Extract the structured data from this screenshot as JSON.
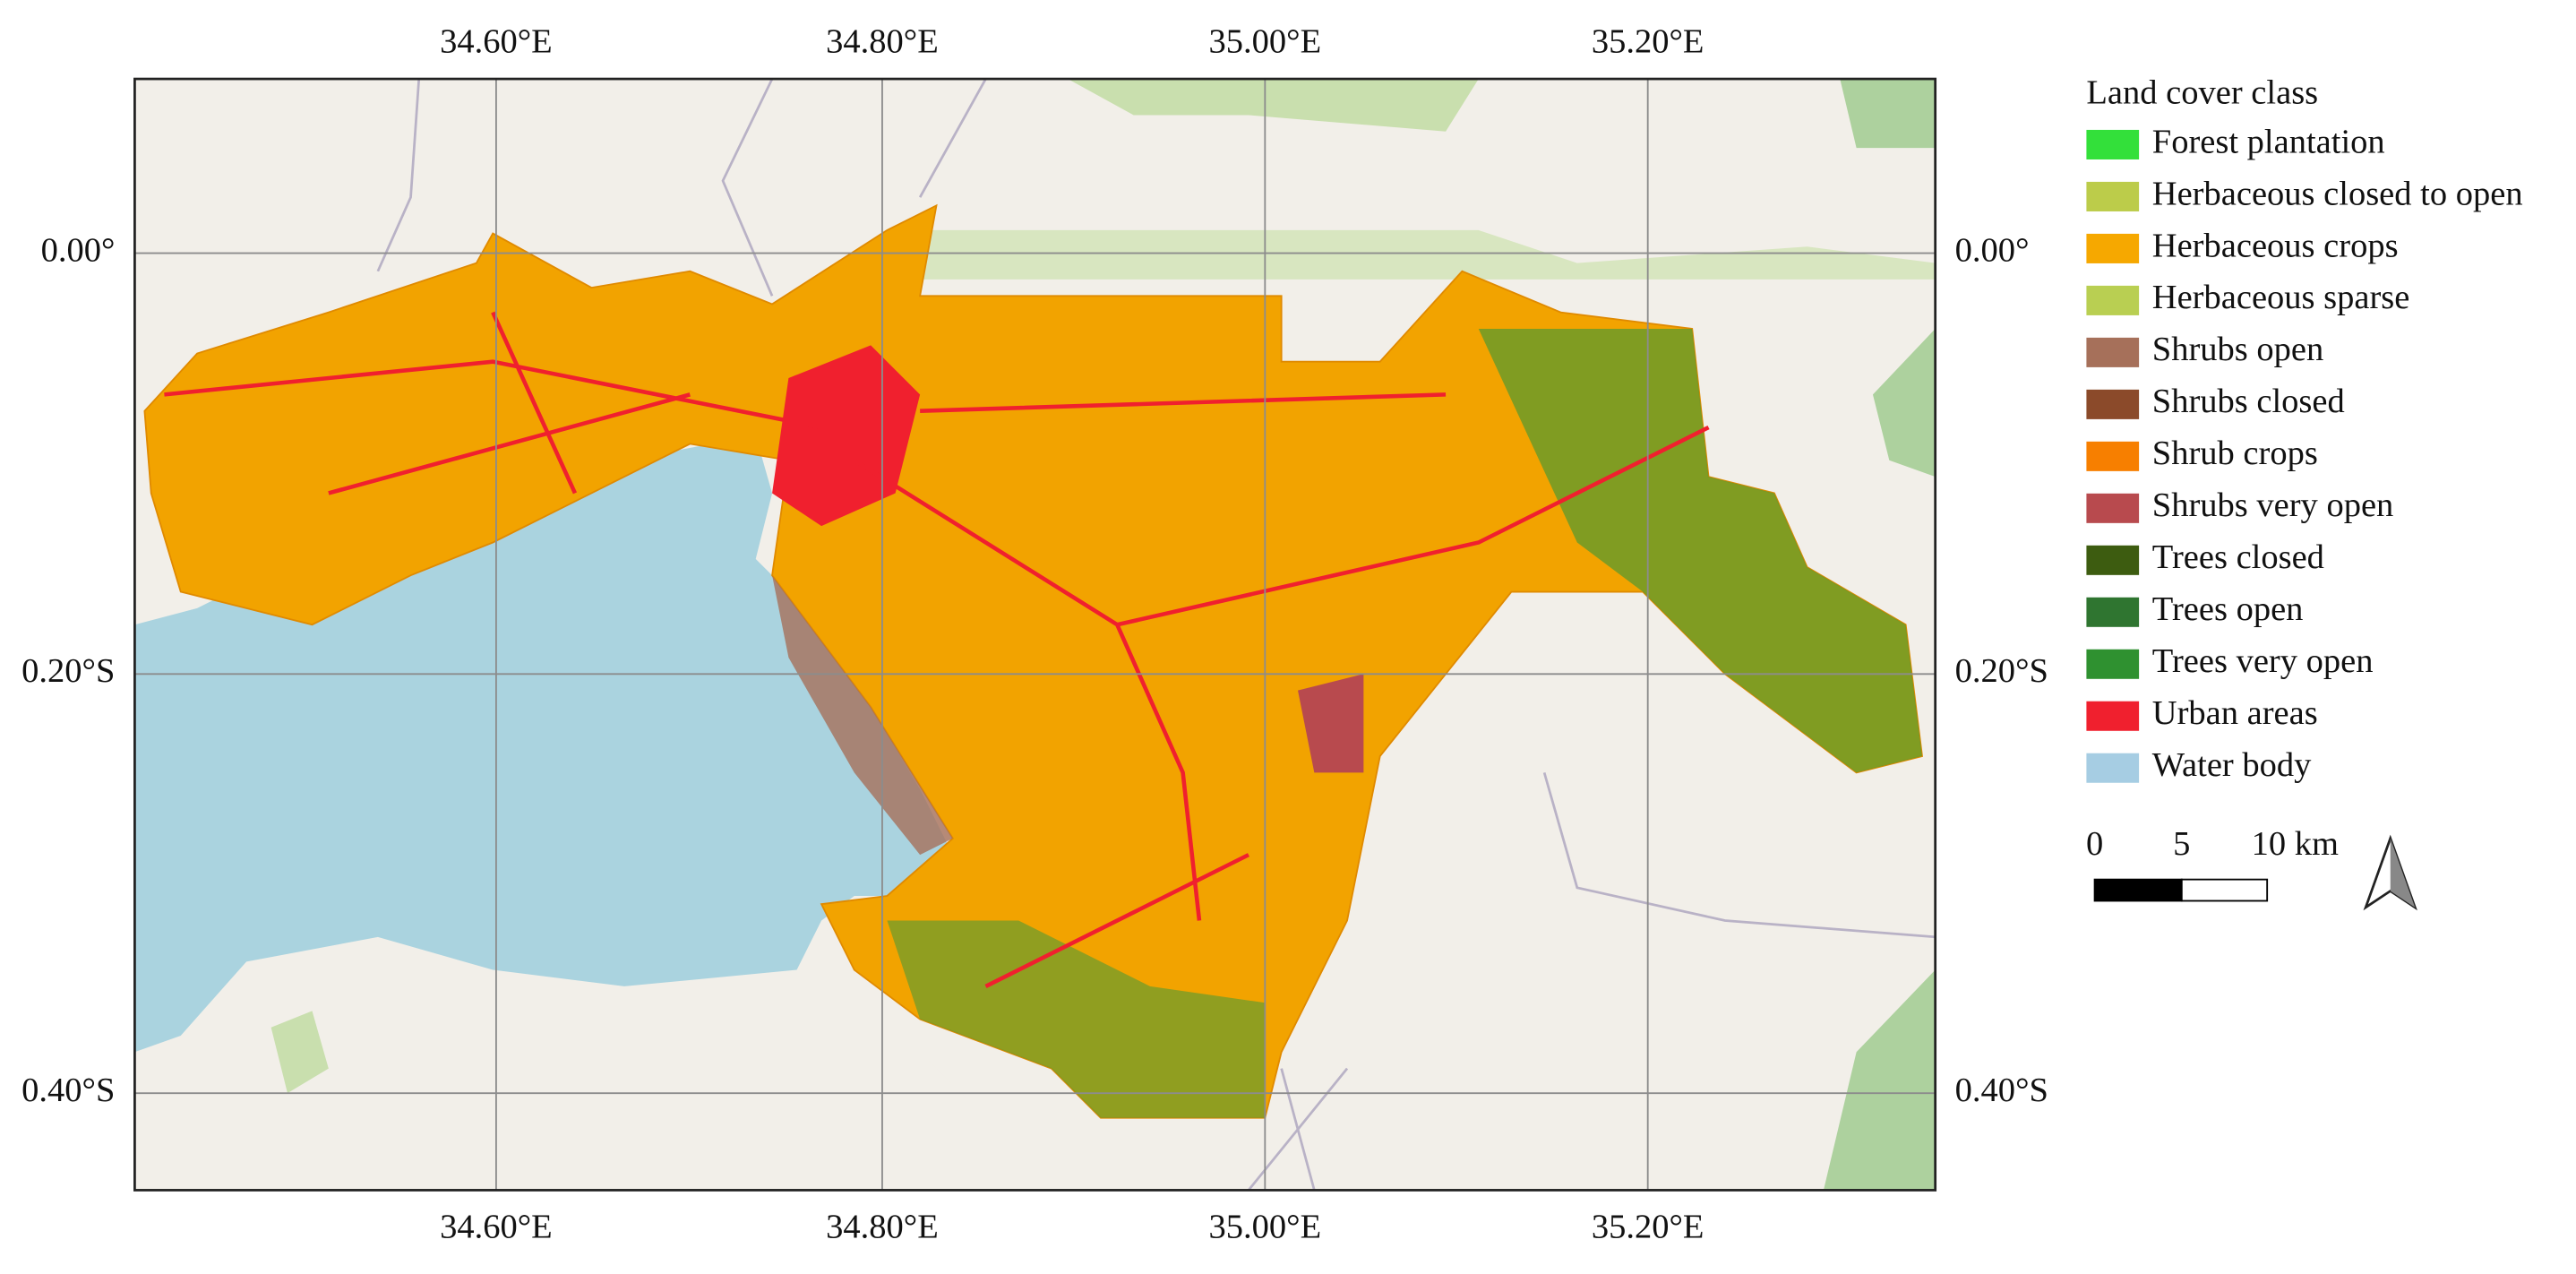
{
  "map": {
    "longitude_labels": [
      "34.60°E",
      "34.80°E",
      "35.00°E",
      "35.20°E"
    ],
    "latitude_labels": [
      "0.00°",
      "0.20°S",
      "0.40°S"
    ],
    "legend": {
      "title": "Land cover class",
      "items": [
        {
          "label": "Forest plantation",
          "color": "#33e03a"
        },
        {
          "label": "Herbaceous closed to open",
          "color": "#bccc4a"
        },
        {
          "label": "Herbaceous crops",
          "color": "#f6a800"
        },
        {
          "label": "Herbaceous sparse",
          "color": "#b9cf52"
        },
        {
          "label": "Shrubs open",
          "color": "#a6705a"
        },
        {
          "label": "Shrubs closed",
          "color": "#8b4a2a"
        },
        {
          "label": "Shrub crops",
          "color": "#f77f00"
        },
        {
          "label": "Shrubs very open",
          "color": "#b84a4e"
        },
        {
          "label": "Trees closed",
          "color": "#3d5c10"
        },
        {
          "label": "Trees open",
          "color": "#2f7530"
        },
        {
          "label": "Trees very open",
          "color": "#2f9130"
        },
        {
          "label": "Urban areas",
          "color": "#f0202e"
        },
        {
          "label": "Water body",
          "color": "#a6cde3"
        }
      ]
    },
    "scale_bar": {
      "labels": [
        "0",
        "5",
        "10 km"
      ]
    }
  }
}
